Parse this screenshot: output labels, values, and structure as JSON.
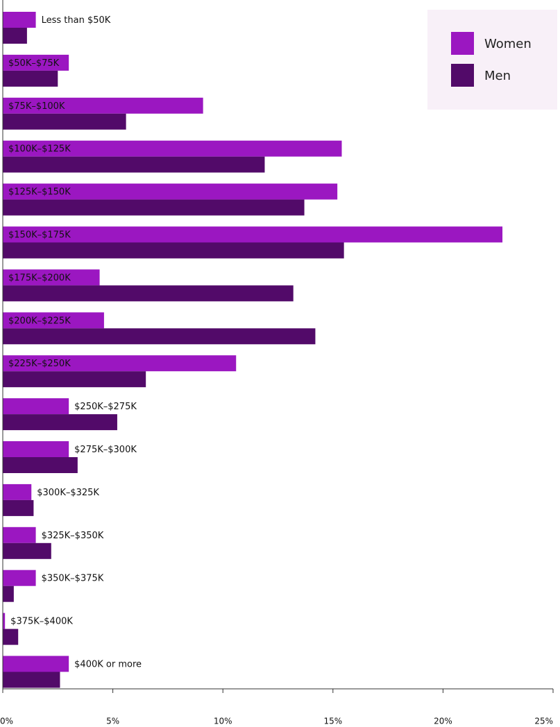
{
  "chart_data": {
    "type": "bar",
    "orientation": "horizontal",
    "categories": [
      "Less than $50K",
      "$50K–$75K",
      "$75K–$100K",
      "$100K–$125K",
      "$125K–$150K",
      "$150K–$175K",
      "$175K–$200K",
      "$200K–$225K",
      "$225K–$250K",
      "$250K–$275K",
      "$275K–$300K",
      "$300K–$325K",
      "$325K–$350K",
      "$350K–$375K",
      "$375K–$400K",
      "$400K or more"
    ],
    "series": [
      {
        "name": "Women",
        "color": "#9b17c1",
        "values": [
          1.5,
          3.0,
          9.1,
          15.4,
          15.2,
          22.7,
          4.4,
          4.6,
          10.6,
          3.0,
          3.0,
          1.3,
          1.5,
          1.5,
          0.1,
          3.0
        ]
      },
      {
        "name": "Men",
        "color": "#520a69",
        "values": [
          1.1,
          2.5,
          5.6,
          11.9,
          13.7,
          15.5,
          13.2,
          14.2,
          6.5,
          5.2,
          3.4,
          1.4,
          2.2,
          0.5,
          0.7,
          2.6
        ]
      }
    ],
    "xlim": [
      0,
      25
    ],
    "xticks": [
      {
        "value": 0,
        "label": "0%"
      },
      {
        "value": 5,
        "label": "5%"
      },
      {
        "value": 10,
        "label": "10%"
      },
      {
        "value": 15,
        "label": "15%"
      },
      {
        "value": 20,
        "label": "20%"
      },
      {
        "value": 25,
        "label": "25%"
      }
    ],
    "legend": "top-right"
  }
}
